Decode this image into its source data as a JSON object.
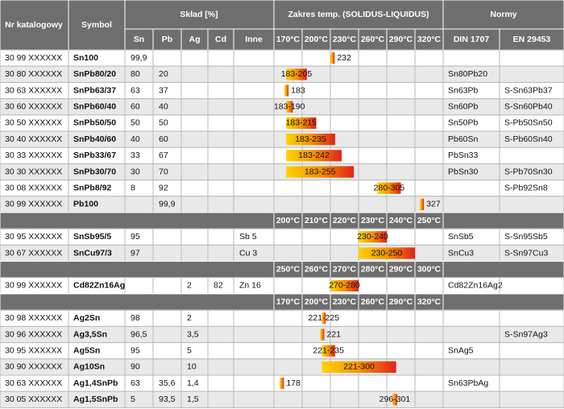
{
  "header": {
    "nr": "Nr katalogowy",
    "symbol": "Symbol",
    "sklad": "Skład [%]",
    "sklad_cols": [
      "Sn",
      "Pb",
      "Ag",
      "Cd",
      "Inne"
    ],
    "zakres": "Zakres temp. (SOLIDUS-LIQUIDUS)",
    "normy": "Normy",
    "normy_cols": [
      "DIN 1707",
      "EN 29453"
    ]
  },
  "sections": [
    {
      "ticks": [
        {
          "value": 170,
          "label": "170°C"
        },
        {
          "value": 200,
          "label": "200°C"
        },
        {
          "value": 230,
          "label": "230°C"
        },
        {
          "value": 260,
          "label": "260°C"
        },
        {
          "value": 290,
          "label": "290°C"
        },
        {
          "value": 320,
          "label": "320°C"
        }
      ],
      "rows": [
        {
          "nr": "30 99 XXXXXX",
          "symbol": "Sn100",
          "sn": "99,9",
          "range": {
            "label": "232",
            "solidus": 232,
            "liquidus": 232
          }
        },
        {
          "nr": "30 80 XXXXXX",
          "symbol": "SnPb80/20",
          "sn": 80,
          "pb": 20,
          "range": {
            "label": "183-205",
            "solidus": 183,
            "liquidus": 205
          },
          "din": "Sn80Pb20"
        },
        {
          "nr": "30 63 XXXXXX",
          "symbol": "SnPb63/37",
          "sn": 63,
          "pb": 37,
          "range": {
            "label": "183",
            "solidus": 183,
            "liquidus": 183
          },
          "din": "Sn63Pb",
          "en": "S-Sn63Pb37"
        },
        {
          "nr": "30 60 XXXXXX",
          "symbol": "SnPb60/40",
          "sn": 60,
          "pb": 40,
          "range": {
            "label": "183-190",
            "solidus": 183,
            "liquidus": 190
          },
          "din": "Sn60Pb",
          "en": "S-Sn60Pb40"
        },
        {
          "nr": "30 50 XXXXXX",
          "symbol": "SnPb50/50",
          "sn": 50,
          "pb": 50,
          "range": {
            "label": "183-215",
            "solidus": 183,
            "liquidus": 215
          },
          "din": "Sn50Pb",
          "en": "S-Pb50Sn50"
        },
        {
          "nr": "30 40 XXXXXX",
          "symbol": "SnPb40/60",
          "sn": 40,
          "pb": 60,
          "range": {
            "label": "183-235",
            "solidus": 183,
            "liquidus": 235
          },
          "din": "Pb60Sn",
          "en": "S-Pb60Sn40"
        },
        {
          "nr": "30 33 XXXXXX",
          "symbol": "SnPb33/67",
          "sn": 33,
          "pb": 67,
          "range": {
            "label": "183-242",
            "solidus": 183,
            "liquidus": 242
          },
          "din": "PbSn33"
        },
        {
          "nr": "30 30 XXXXXX",
          "symbol": "SnPb30/70",
          "sn": 30,
          "pb": 70,
          "range": {
            "label": "183-255",
            "solidus": 183,
            "liquidus": 255
          },
          "din": "PbSn30",
          "en": "S-Pb70Sn30"
        },
        {
          "nr": "30 08 XXXXXX",
          "symbol": "SnPb8/92",
          "sn": 8,
          "pb": 92,
          "range": {
            "label": "280-305",
            "solidus": 280,
            "liquidus": 305
          },
          "en": "S-Pb92Sn8"
        },
        {
          "nr": "30 99 XXXXXX",
          "symbol": "Pb100",
          "pb": "99,9",
          "range": {
            "label": "327",
            "solidus": 327,
            "liquidus": 327
          }
        }
      ]
    },
    {
      "ticks": [
        {
          "value": 200,
          "label": "200°C"
        },
        {
          "value": 210,
          "label": "210°C"
        },
        {
          "value": 220,
          "label": "220°C"
        },
        {
          "value": 230,
          "label": "230°C"
        },
        {
          "value": 240,
          "label": "240°C"
        },
        {
          "value": 250,
          "label": "250°C"
        }
      ],
      "rows": [
        {
          "nr": "30 95 XXXXXX",
          "symbol": "SnSb95/5",
          "sn": 95,
          "inne": "Sb 5",
          "range": {
            "label": "230-240",
            "solidus": 230,
            "liquidus": 240
          },
          "din": "SnSb5",
          "en": "S-Sn95Sb5"
        },
        {
          "nr": "30 67 XXXXXX",
          "symbol": "SnCu97/3",
          "sn": 97,
          "inne": "Cu 3",
          "range": {
            "label": "230-250",
            "solidus": 230,
            "liquidus": 250
          },
          "din": "SnCu3",
          "en": "S-Sn97Cu3"
        }
      ]
    },
    {
      "ticks": [
        {
          "value": 250,
          "label": "250°C"
        },
        {
          "value": 260,
          "label": "260°C"
        },
        {
          "value": 270,
          "label": "270°C"
        },
        {
          "value": 280,
          "label": "280°C"
        },
        {
          "value": 290,
          "label": "290°C"
        },
        {
          "value": 300,
          "label": "300°C"
        }
      ],
      "rows": [
        {
          "nr": "30 99 XXXXXX",
          "symbol": "Cd82Zn16Ag",
          "ag": 2,
          "cd": 82,
          "inne": "Zn 16",
          "range": {
            "label": "270-280",
            "solidus": 270,
            "liquidus": 280
          },
          "din": "Cd82Zn16Ag2"
        }
      ]
    },
    {
      "ticks": [
        {
          "value": 170,
          "label": "170°C"
        },
        {
          "value": 200,
          "label": "200°C"
        },
        {
          "value": 230,
          "label": "230°C"
        },
        {
          "value": 260,
          "label": "260°C"
        },
        {
          "value": 290,
          "label": "290°C"
        },
        {
          "value": 320,
          "label": "320°C"
        }
      ],
      "rows": [
        {
          "nr": "30 98 XXXXXX",
          "symbol": "Ag2Sn",
          "sn": 98,
          "ag": 2,
          "range": {
            "label": "221-225",
            "solidus": 221,
            "liquidus": 225
          }
        },
        {
          "nr": "30 96 XXXXXX",
          "symbol": "Ag3,5Sn",
          "sn": "96,5",
          "ag": "3,5",
          "range": {
            "label": "221",
            "solidus": 221,
            "liquidus": 221
          },
          "en": "S-Sn97Ag3"
        },
        {
          "nr": "30 95 XXXXXX",
          "symbol": "Ag5Sn",
          "sn": 95,
          "ag": 5,
          "range": {
            "label": "221-235",
            "solidus": 221,
            "liquidus": 235
          },
          "din": "SnAg5"
        },
        {
          "nr": "30 90 XXXXXX",
          "symbol": "Ag10Sn",
          "sn": 90,
          "ag": 10,
          "range": {
            "label": "221-300",
            "solidus": 221,
            "liquidus": 300
          }
        },
        {
          "nr": "30 63 XXXXXX",
          "symbol": "Ag1,4SnPb",
          "sn": 63,
          "pb": "35,6",
          "ag": "1,4",
          "range": {
            "label": "178",
            "solidus": 178,
            "liquidus": 178
          },
          "din": "Sn63PbAg"
        },
        {
          "nr": "30 05 XXXXXX",
          "symbol": "Ag1,5SnPb",
          "sn": 5,
          "pb": "93,5",
          "ag": "1,5",
          "range": {
            "label": "296-301",
            "solidus": 296,
            "liquidus": 301
          }
        }
      ]
    }
  ]
}
